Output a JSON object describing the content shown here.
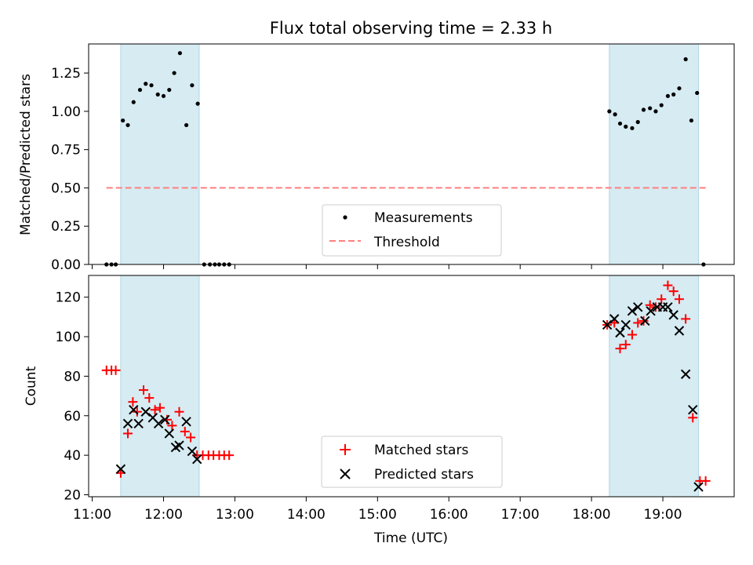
{
  "title": "Flux total observing time = 2.33 h",
  "xlabel": "Time (UTC)",
  "xticks": [
    "11:00",
    "12:00",
    "13:00",
    "14:00",
    "15:00",
    "16:00",
    "17:00",
    "18:00",
    "19:00"
  ],
  "highlight_color": "#add8e6",
  "chart_data": [
    {
      "type": "scatter",
      "panel": "top",
      "ylabel": "Matched/Predicted stars",
      "x_unit": "hours UTC",
      "xlim": [
        10.95,
        20.0
      ],
      "ylim": [
        0.0,
        1.44
      ],
      "yticks": [
        "0.00",
        "0.25",
        "0.50",
        "0.75",
        "1.00",
        "1.25"
      ],
      "legend": "lower-center",
      "shaded_intervals": [
        [
          11.4,
          12.5
        ],
        [
          18.25,
          19.5
        ]
      ],
      "series": [
        {
          "name": "Measurements",
          "color": "#000000",
          "marker": "dot",
          "x": [
            11.2,
            11.27,
            11.33,
            11.43,
            11.5,
            11.58,
            11.67,
            11.75,
            11.83,
            11.92,
            12.0,
            12.08,
            12.15,
            12.23,
            12.32,
            12.4,
            12.48,
            12.57,
            12.65,
            12.72,
            12.78,
            12.85,
            12.92,
            18.25,
            18.33,
            18.4,
            18.48,
            18.57,
            18.65,
            18.73,
            18.82,
            18.9,
            18.98,
            19.07,
            19.15,
            19.23,
            19.32,
            19.4,
            19.48,
            19.57
          ],
          "y": [
            0.0,
            0.0,
            0.0,
            0.94,
            0.91,
            1.06,
            1.14,
            1.18,
            1.17,
            1.11,
            1.1,
            1.14,
            1.25,
            1.38,
            0.91,
            1.17,
            1.05,
            0.0,
            0.0,
            0.0,
            0.0,
            0.0,
            0.0,
            1.0,
            0.98,
            0.92,
            0.9,
            0.89,
            0.93,
            1.01,
            1.02,
            1.0,
            1.04,
            1.1,
            1.11,
            1.15,
            1.34,
            0.94,
            1.12,
            0.0
          ]
        },
        {
          "name": "Threshold",
          "color": "#ff7f7f",
          "style": "dashed",
          "x": [
            11.2,
            19.6
          ],
          "y": [
            0.5,
            0.5
          ]
        }
      ]
    },
    {
      "type": "scatter",
      "panel": "bottom",
      "ylabel": "Count",
      "x_unit": "hours UTC",
      "xlim": [
        10.95,
        20.0
      ],
      "ylim": [
        19,
        131
      ],
      "yticks": [
        "20",
        "40",
        "60",
        "80",
        "100",
        "120"
      ],
      "legend": "lower-center",
      "shaded_intervals": [
        [
          11.4,
          12.5
        ],
        [
          18.25,
          19.5
        ]
      ],
      "series": [
        {
          "name": "Matched stars",
          "color": "#ff0000",
          "marker": "plus",
          "x": [
            11.2,
            11.27,
            11.33,
            11.4,
            11.5,
            11.57,
            11.63,
            11.72,
            11.8,
            11.88,
            11.95,
            12.05,
            12.12,
            12.22,
            12.3,
            12.38,
            12.47,
            12.55,
            12.63,
            12.7,
            12.78,
            12.85,
            12.92,
            18.22,
            18.32,
            18.4,
            18.48,
            18.57,
            18.65,
            18.73,
            18.82,
            18.9,
            18.98,
            19.07,
            19.15,
            19.23,
            19.32,
            19.42,
            19.52,
            19.6
          ],
          "y": [
            83,
            83,
            83,
            31,
            51,
            67,
            62,
            73,
            69,
            63,
            64,
            58,
            55,
            62,
            52,
            49,
            40,
            40,
            40,
            40,
            40,
            40,
            40,
            106,
            107,
            94,
            96,
            101,
            107,
            108,
            116,
            115,
            119,
            126,
            123,
            119,
            109,
            59,
            27,
            27
          ]
        },
        {
          "name": "Predicted stars",
          "color": "#000000",
          "marker": "x",
          "x": [
            11.4,
            11.5,
            11.58,
            11.65,
            11.75,
            11.85,
            11.93,
            12.02,
            12.08,
            12.17,
            12.22,
            12.32,
            12.4,
            12.47,
            18.22,
            18.32,
            18.4,
            18.48,
            18.57,
            18.65,
            18.75,
            18.83,
            18.92,
            19.0,
            19.07,
            19.15,
            19.23,
            19.32,
            19.42,
            19.5
          ],
          "y": [
            33,
            56,
            63,
            56,
            62,
            59,
            56,
            58,
            51,
            44,
            45,
            57,
            42,
            38,
            106,
            109,
            102,
            106,
            113,
            115,
            108,
            113,
            115,
            115,
            115,
            111,
            103,
            81,
            63,
            24
          ]
        }
      ]
    }
  ]
}
